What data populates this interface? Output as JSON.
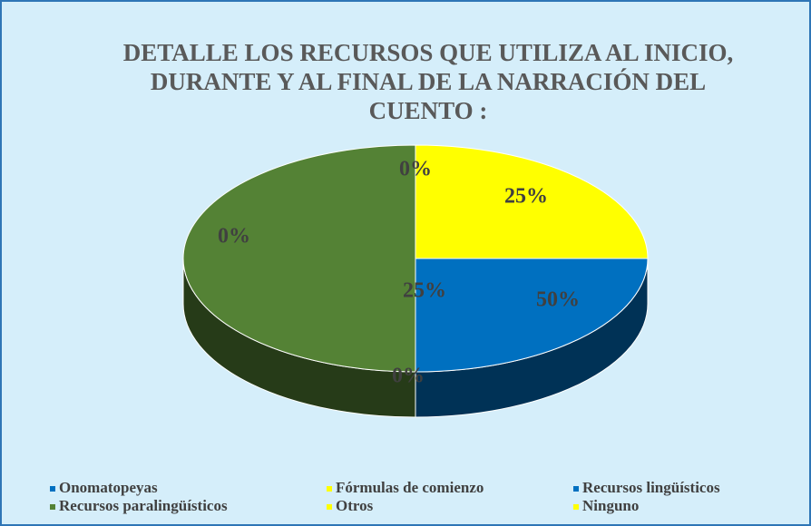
{
  "chart_data": {
    "type": "pie",
    "title": "DETALLE LOS RECURSOS QUE UTILIZA AL INICIO, DURANTE Y AL FINAL DE LA NARRACIÓN DEL CUENTO :",
    "categories": [
      "Onomatopeyas",
      "Fórmulas de comienzo",
      "Recursos lingüísticos",
      "Recursos paralingüísticos",
      "Otros",
      "Ninguno"
    ],
    "values": [
      0,
      25,
      25,
      50,
      0,
      0
    ],
    "value_labels": [
      "0%",
      "25%",
      "25%",
      "50%",
      "0%",
      "0%"
    ],
    "colors": [
      "#0070c0",
      "#ffff00",
      "#0070c0",
      "#548235",
      "#ffff00",
      "#ffff00"
    ],
    "legend": "bottom"
  }
}
